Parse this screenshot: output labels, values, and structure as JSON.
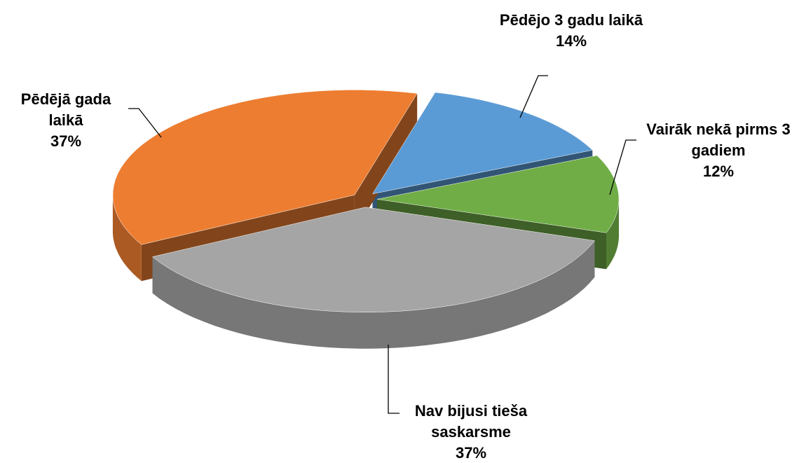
{
  "chart_data": {
    "type": "pie",
    "categories": [
      "Pēdējo 3 gadu laikā",
      "Vairāk nekā pirms 3 gadiem",
      "Nav bijusi tieša saskarsme",
      "Pēdējā gada laikā"
    ],
    "values": [
      14,
      12,
      37,
      37
    ],
    "value_labels": [
      "14%",
      "12%",
      "37%",
      "37%"
    ],
    "colors": [
      "#5b9bd5",
      "#70ad47",
      "#a5a5a5",
      "#ed7d31"
    ]
  }
}
